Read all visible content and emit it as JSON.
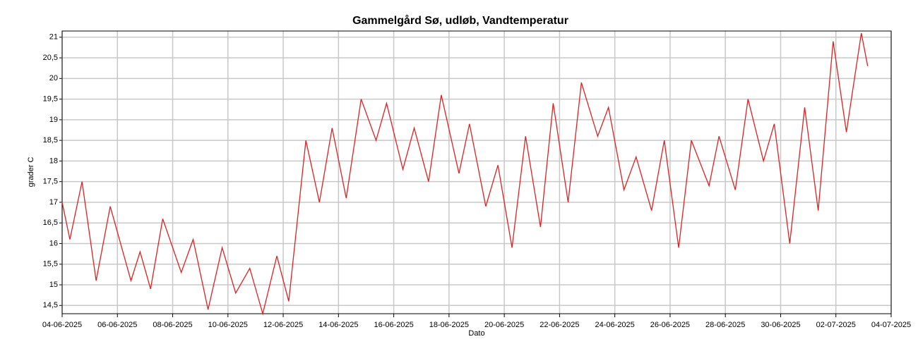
{
  "chart_data": {
    "type": "line",
    "title": "Gammelgård Sø, udløb, Vandtemperatur",
    "xlabel": "Dato",
    "ylabel": "grader C",
    "grid": true,
    "xlim": [
      0,
      30
    ],
    "ylim": [
      14.3,
      21.15
    ],
    "xticks": [
      {
        "value": 0,
        "label": "04-06-2025"
      },
      {
        "value": 2,
        "label": "06-06-2025"
      },
      {
        "value": 4,
        "label": "08-06-2025"
      },
      {
        "value": 6,
        "label": "10-06-2025"
      },
      {
        "value": 8,
        "label": "12-06-2025"
      },
      {
        "value": 10,
        "label": "14-06-2025"
      },
      {
        "value": 12,
        "label": "16-06-2025"
      },
      {
        "value": 14,
        "label": "18-06-2025"
      },
      {
        "value": 16,
        "label": "20-06-2025"
      },
      {
        "value": 18,
        "label": "22-06-2025"
      },
      {
        "value": 20,
        "label": "24-06-2025"
      },
      {
        "value": 22,
        "label": "26-06-2025"
      },
      {
        "value": 24,
        "label": "28-06-2025"
      },
      {
        "value": 26,
        "label": "30-06-2025"
      },
      {
        "value": 28,
        "label": "02-07-2025"
      },
      {
        "value": 30,
        "label": "04-07-2025"
      }
    ],
    "yticks": [
      {
        "value": 14.5,
        "label": "14,5"
      },
      15,
      {
        "value": 15.5,
        "label": "15,5"
      },
      16,
      {
        "value": 16.5,
        "label": "16,5"
      },
      17,
      {
        "value": 17.5,
        "label": "17,5"
      },
      18,
      {
        "value": 18.5,
        "label": "18,5"
      },
      19,
      {
        "value": 19.5,
        "label": "19,5"
      },
      20,
      {
        "value": 20.5,
        "label": "20,5"
      },
      21
    ],
    "series": [
      {
        "color": "#e02020",
        "x": [
          0,
          0.28,
          0.72,
          1.23,
          1.74,
          2.49,
          2.82,
          3.2,
          3.64,
          4.31,
          4.74,
          5.28,
          5.79,
          6.28,
          6.79,
          7.26,
          7.77,
          8.2,
          8.82,
          9.31,
          9.77,
          10.28,
          10.82,
          11.36,
          11.74,
          12.33,
          12.74,
          13.26,
          13.72,
          14.36,
          14.74,
          15.33,
          15.77,
          16.28,
          16.77,
          17.31,
          17.77,
          18.31,
          18.79,
          19.38,
          19.77,
          20.33,
          20.77,
          21.33,
          21.79,
          22.31,
          22.77,
          23.41,
          23.77,
          24.36,
          24.82,
          25.38,
          25.77,
          26.33,
          26.87,
          27.36,
          27.9,
          28.38,
          28.92,
          29.15
        ],
        "values": [
          17.0,
          16.1,
          17.5,
          15.1,
          16.9,
          15.1,
          15.8,
          14.9,
          16.6,
          15.3,
          16.1,
          14.4,
          15.9,
          14.8,
          15.4,
          14.3,
          15.7,
          14.6,
          18.5,
          17.0,
          18.8,
          17.1,
          19.5,
          18.5,
          19.4,
          17.8,
          18.8,
          17.5,
          19.6,
          17.7,
          18.9,
          16.9,
          17.9,
          15.9,
          18.6,
          16.4,
          19.4,
          17.0,
          19.9,
          18.6,
          19.3,
          17.3,
          18.1,
          16.8,
          18.5,
          15.9,
          18.5,
          17.4,
          18.6,
          17.3,
          19.5,
          18.0,
          18.9,
          16.0,
          19.3,
          16.8,
          20.9,
          18.7,
          21.1,
          20.3
        ]
      }
    ]
  }
}
